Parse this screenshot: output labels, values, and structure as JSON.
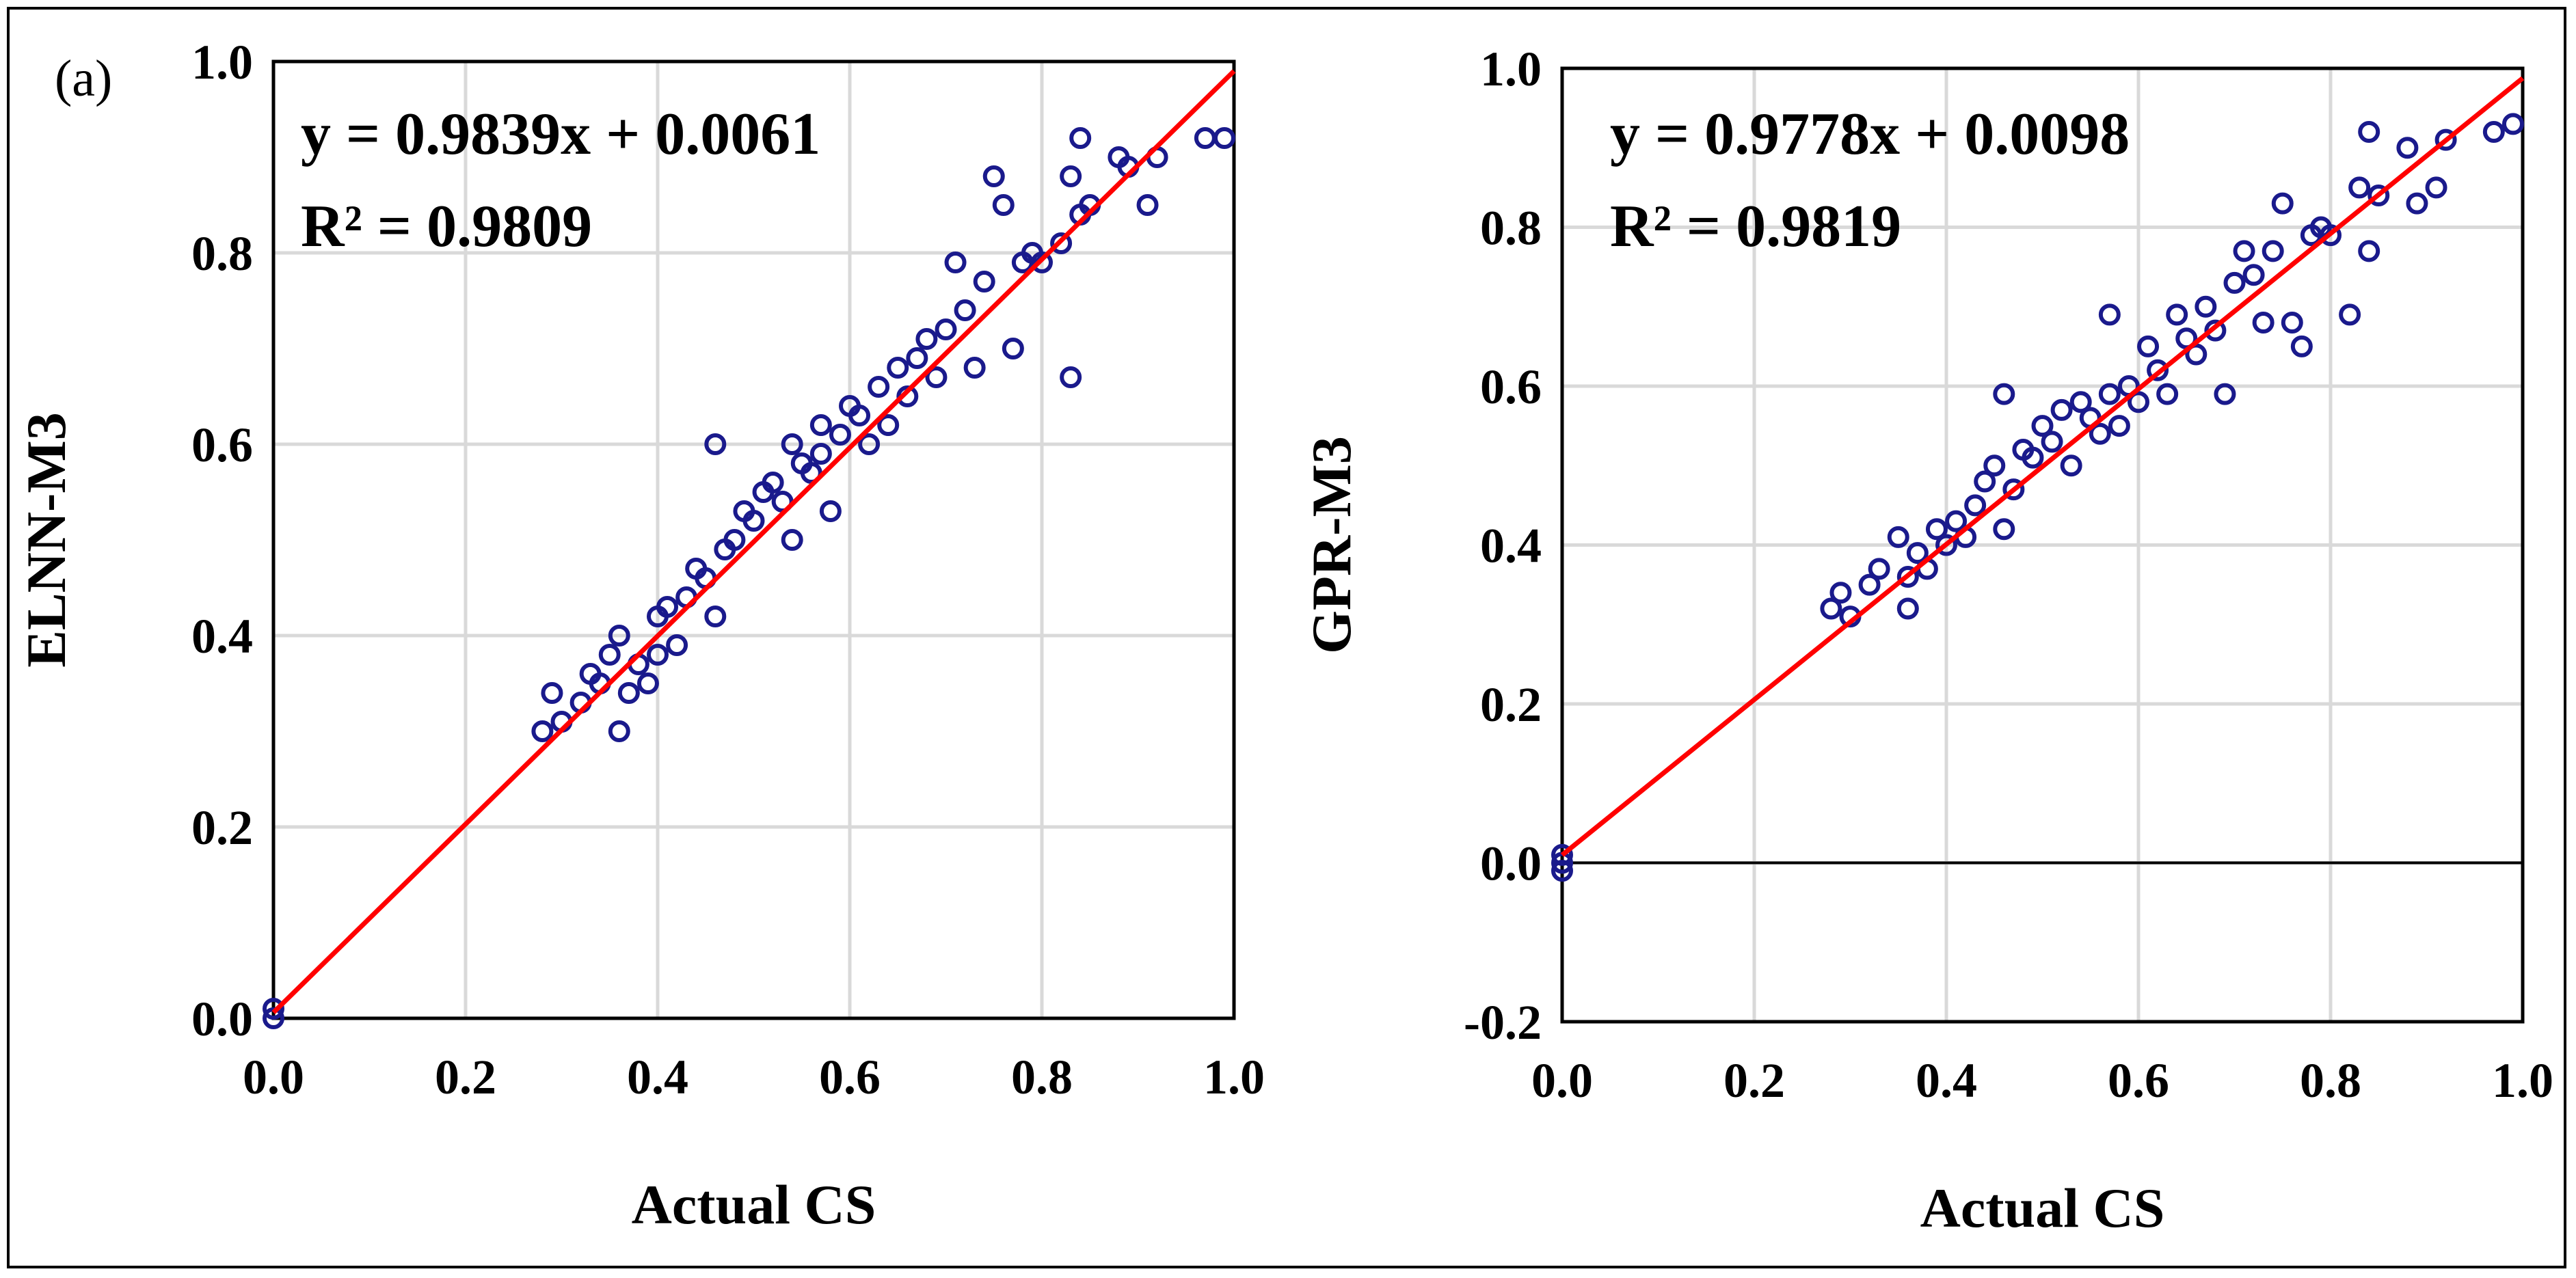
{
  "panel_label": "(a)",
  "colors": {
    "points": "#1a1a8c",
    "fit_line": "#ff0000",
    "grid": "#d9d9d9",
    "axis": "#000000"
  },
  "chart_data": [
    {
      "type": "scatter",
      "xlabel": "Actual CS",
      "ylabel": "ELNN-M3",
      "xlim": [
        0.0,
        1.0
      ],
      "ylim": [
        0.0,
        1.0
      ],
      "xticks": [
        "0.0",
        "0.2",
        "0.4",
        "0.6",
        "0.8",
        "1.0"
      ],
      "yticks": [
        "0.0",
        "0.2",
        "0.4",
        "0.6",
        "0.8",
        "1.0"
      ],
      "grid": true,
      "zero_line": false,
      "equation": "y = 0.9839x + 0.0061",
      "r_squared": "R² = 0.9809",
      "fit": {
        "slope": 0.9839,
        "intercept": 0.0061
      },
      "points": [
        [
          0.0,
          0.0
        ],
        [
          0.0,
          0.01
        ],
        [
          0.28,
          0.3
        ],
        [
          0.29,
          0.34
        ],
        [
          0.3,
          0.31
        ],
        [
          0.32,
          0.33
        ],
        [
          0.33,
          0.36
        ],
        [
          0.34,
          0.35
        ],
        [
          0.35,
          0.38
        ],
        [
          0.36,
          0.4
        ],
        [
          0.36,
          0.3
        ],
        [
          0.37,
          0.34
        ],
        [
          0.38,
          0.37
        ],
        [
          0.39,
          0.35
        ],
        [
          0.4,
          0.42
        ],
        [
          0.4,
          0.38
        ],
        [
          0.41,
          0.43
        ],
        [
          0.42,
          0.39
        ],
        [
          0.43,
          0.44
        ],
        [
          0.44,
          0.47
        ],
        [
          0.45,
          0.46
        ],
        [
          0.46,
          0.6
        ],
        [
          0.46,
          0.42
        ],
        [
          0.47,
          0.49
        ],
        [
          0.48,
          0.5
        ],
        [
          0.49,
          0.53
        ],
        [
          0.5,
          0.52
        ],
        [
          0.51,
          0.55
        ],
        [
          0.52,
          0.56
        ],
        [
          0.53,
          0.54
        ],
        [
          0.54,
          0.6
        ],
        [
          0.54,
          0.5
        ],
        [
          0.55,
          0.58
        ],
        [
          0.56,
          0.57
        ],
        [
          0.57,
          0.59
        ],
        [
          0.57,
          0.62
        ],
        [
          0.58,
          0.53
        ],
        [
          0.59,
          0.61
        ],
        [
          0.6,
          0.64
        ],
        [
          0.61,
          0.63
        ],
        [
          0.62,
          0.6
        ],
        [
          0.63,
          0.66
        ],
        [
          0.64,
          0.62
        ],
        [
          0.65,
          0.68
        ],
        [
          0.66,
          0.65
        ],
        [
          0.67,
          0.69
        ],
        [
          0.68,
          0.71
        ],
        [
          0.69,
          0.67
        ],
        [
          0.7,
          0.72
        ],
        [
          0.71,
          0.79
        ],
        [
          0.72,
          0.74
        ],
        [
          0.73,
          0.68
        ],
        [
          0.74,
          0.77
        ],
        [
          0.75,
          0.88
        ],
        [
          0.76,
          0.85
        ],
        [
          0.77,
          0.7
        ],
        [
          0.78,
          0.79
        ],
        [
          0.79,
          0.8
        ],
        [
          0.8,
          0.79
        ],
        [
          0.82,
          0.81
        ],
        [
          0.83,
          0.67
        ],
        [
          0.83,
          0.88
        ],
        [
          0.84,
          0.84
        ],
        [
          0.84,
          0.92
        ],
        [
          0.85,
          0.85
        ],
        [
          0.88,
          0.9
        ],
        [
          0.89,
          0.89
        ],
        [
          0.91,
          0.85
        ],
        [
          0.92,
          0.9
        ],
        [
          0.97,
          0.92
        ],
        [
          0.99,
          0.92
        ]
      ]
    },
    {
      "type": "scatter",
      "xlabel": "Actual CS",
      "ylabel": "GPR-M3",
      "xlim": [
        0.0,
        1.0
      ],
      "ylim": [
        -0.2,
        1.0
      ],
      "xticks": [
        "0.0",
        "0.2",
        "0.4",
        "0.6",
        "0.8",
        "1.0"
      ],
      "yticks": [
        "-0.2",
        "0.0",
        "0.2",
        "0.4",
        "0.6",
        "0.8",
        "1.0"
      ],
      "grid": true,
      "zero_line": true,
      "equation": "y = 0.9778x + 0.0098",
      "r_squared": "R² = 0.9819",
      "fit": {
        "slope": 0.9778,
        "intercept": 0.0098
      },
      "points": [
        [
          0.0,
          0.0
        ],
        [
          0.0,
          -0.01
        ],
        [
          0.0,
          0.01
        ],
        [
          0.28,
          0.32
        ],
        [
          0.29,
          0.34
        ],
        [
          0.3,
          0.31
        ],
        [
          0.32,
          0.35
        ],
        [
          0.33,
          0.37
        ],
        [
          0.35,
          0.41
        ],
        [
          0.36,
          0.32
        ],
        [
          0.36,
          0.36
        ],
        [
          0.37,
          0.39
        ],
        [
          0.38,
          0.37
        ],
        [
          0.39,
          0.42
        ],
        [
          0.4,
          0.4
        ],
        [
          0.41,
          0.43
        ],
        [
          0.42,
          0.41
        ],
        [
          0.43,
          0.45
        ],
        [
          0.44,
          0.48
        ],
        [
          0.45,
          0.5
        ],
        [
          0.46,
          0.59
        ],
        [
          0.46,
          0.42
        ],
        [
          0.47,
          0.47
        ],
        [
          0.48,
          0.52
        ],
        [
          0.49,
          0.51
        ],
        [
          0.5,
          0.55
        ],
        [
          0.51,
          0.53
        ],
        [
          0.52,
          0.57
        ],
        [
          0.53,
          0.5
        ],
        [
          0.54,
          0.58
        ],
        [
          0.55,
          0.56
        ],
        [
          0.56,
          0.54
        ],
        [
          0.57,
          0.59
        ],
        [
          0.57,
          0.69
        ],
        [
          0.58,
          0.55
        ],
        [
          0.59,
          0.6
        ],
        [
          0.6,
          0.58
        ],
        [
          0.61,
          0.65
        ],
        [
          0.62,
          0.62
        ],
        [
          0.63,
          0.59
        ],
        [
          0.64,
          0.69
        ],
        [
          0.65,
          0.66
        ],
        [
          0.66,
          0.64
        ],
        [
          0.67,
          0.7
        ],
        [
          0.68,
          0.67
        ],
        [
          0.69,
          0.59
        ],
        [
          0.7,
          0.73
        ],
        [
          0.71,
          0.77
        ],
        [
          0.72,
          0.74
        ],
        [
          0.73,
          0.68
        ],
        [
          0.74,
          0.77
        ],
        [
          0.75,
          0.83
        ],
        [
          0.76,
          0.68
        ],
        [
          0.77,
          0.65
        ],
        [
          0.78,
          0.79
        ],
        [
          0.79,
          0.8
        ],
        [
          0.8,
          0.79
        ],
        [
          0.82,
          0.69
        ],
        [
          0.83,
          0.85
        ],
        [
          0.84,
          0.77
        ],
        [
          0.84,
          0.92
        ],
        [
          0.85,
          0.84
        ],
        [
          0.88,
          0.9
        ],
        [
          0.89,
          0.83
        ],
        [
          0.91,
          0.85
        ],
        [
          0.92,
          0.91
        ],
        [
          0.97,
          0.92
        ],
        [
          0.99,
          0.93
        ]
      ]
    }
  ]
}
